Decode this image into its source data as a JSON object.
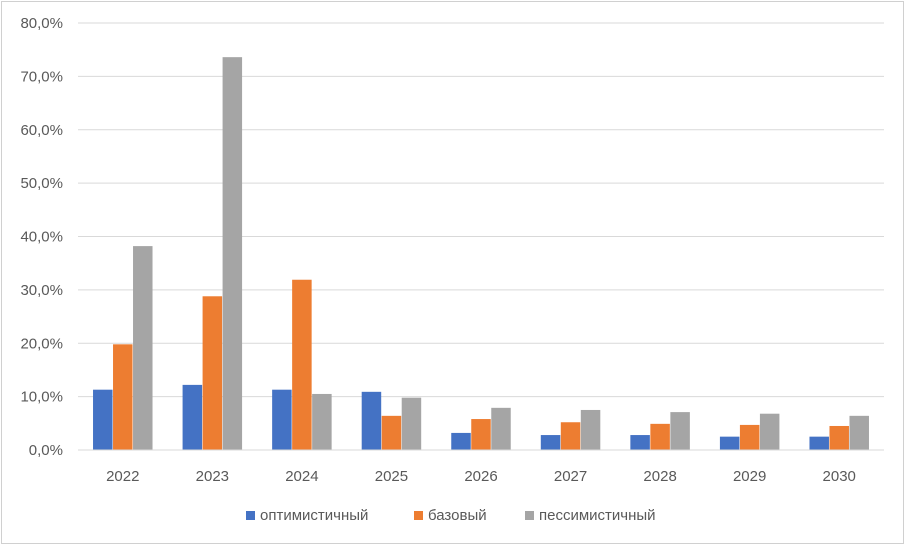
{
  "chart_data": {
    "type": "bar",
    "title": "",
    "xlabel": "",
    "ylabel": "",
    "categories": [
      "2022",
      "2023",
      "2024",
      "2025",
      "2026",
      "2027",
      "2028",
      "2029",
      "2030"
    ],
    "ylim": [
      0,
      80
    ],
    "yticks": [
      "0,0%",
      "10,0%",
      "20,0%",
      "30,0%",
      "40,0%",
      "50,0%",
      "60,0%",
      "70,0%",
      "80,0%"
    ],
    "grid": true,
    "legend_position": "bottom",
    "series": [
      {
        "name": "оптимистичный",
        "color": "#4472c4",
        "values": [
          11.3,
          12.2,
          11.3,
          10.9,
          3.2,
          2.8,
          2.8,
          2.5,
          2.5
        ]
      },
      {
        "name": "базовый",
        "color": "#ed7d31",
        "values": [
          19.8,
          28.8,
          31.9,
          6.4,
          5.8,
          5.2,
          4.9,
          4.7,
          4.5
        ]
      },
      {
        "name": "пессимистичный",
        "color": "#a5a5a5",
        "values": [
          38.2,
          73.6,
          10.5,
          9.8,
          7.9,
          7.5,
          7.1,
          6.8,
          6.4
        ]
      }
    ]
  }
}
